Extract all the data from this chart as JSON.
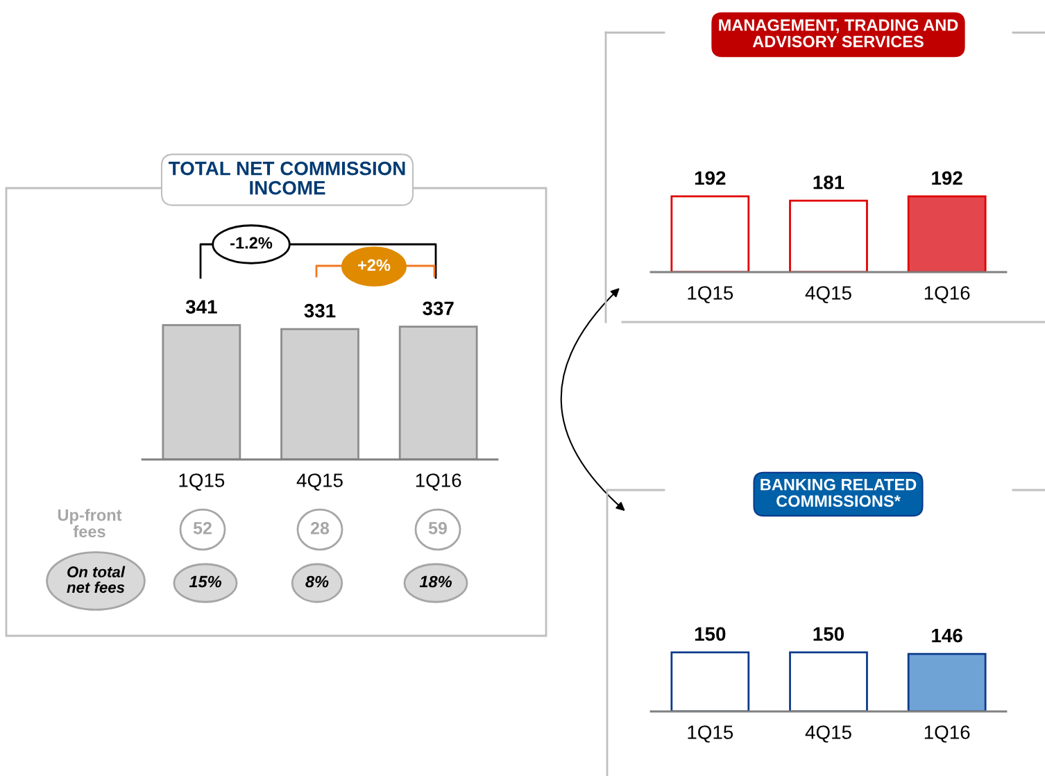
{
  "chart_data": [
    {
      "type": "bar",
      "title": "TOTAL NET COMMISSION\nINCOME",
      "categories": [
        "1Q15",
        "4Q15",
        "1Q16"
      ],
      "series": [
        {
          "color": "#8c8c8c",
          "colors": [
            "#d0d0d0",
            "#d0d0d0",
            "#d0d0d0"
          ],
          "values": [
            341,
            331,
            337
          ]
        }
      ],
      "data_labels": true,
      "annotations": [
        "-1.2%",
        "+2%",
        "Up-front\nfees",
        "52",
        "28",
        "59",
        "On total\nnet fees",
        "15%",
        "8%",
        "18%"
      ]
    },
    {
      "type": "bar",
      "title": "MANAGEMENT, TRADING AND\nADVISORY SERVICES",
      "categories": [
        "1Q15",
        "4Q15",
        "1Q16"
      ],
      "series": [
        {
          "color": "#e00000",
          "colors": [
            "#ffffff",
            "#ffffff",
            "#e3474d"
          ],
          "values": [
            192,
            181,
            192
          ]
        }
      ],
      "data_labels": true
    },
    {
      "type": "bar",
      "title": "BANKING RELATED\nCOMMISSIONS*",
      "categories": [
        "1Q15",
        "4Q15",
        "1Q16"
      ],
      "series": [
        {
          "color": "#0b3a8c",
          "colors": [
            "#ffffff",
            "#ffffff",
            "#6fa3d6"
          ],
          "values": [
            150,
            150,
            146
          ]
        }
      ],
      "data_labels": true
    }
  ]
}
